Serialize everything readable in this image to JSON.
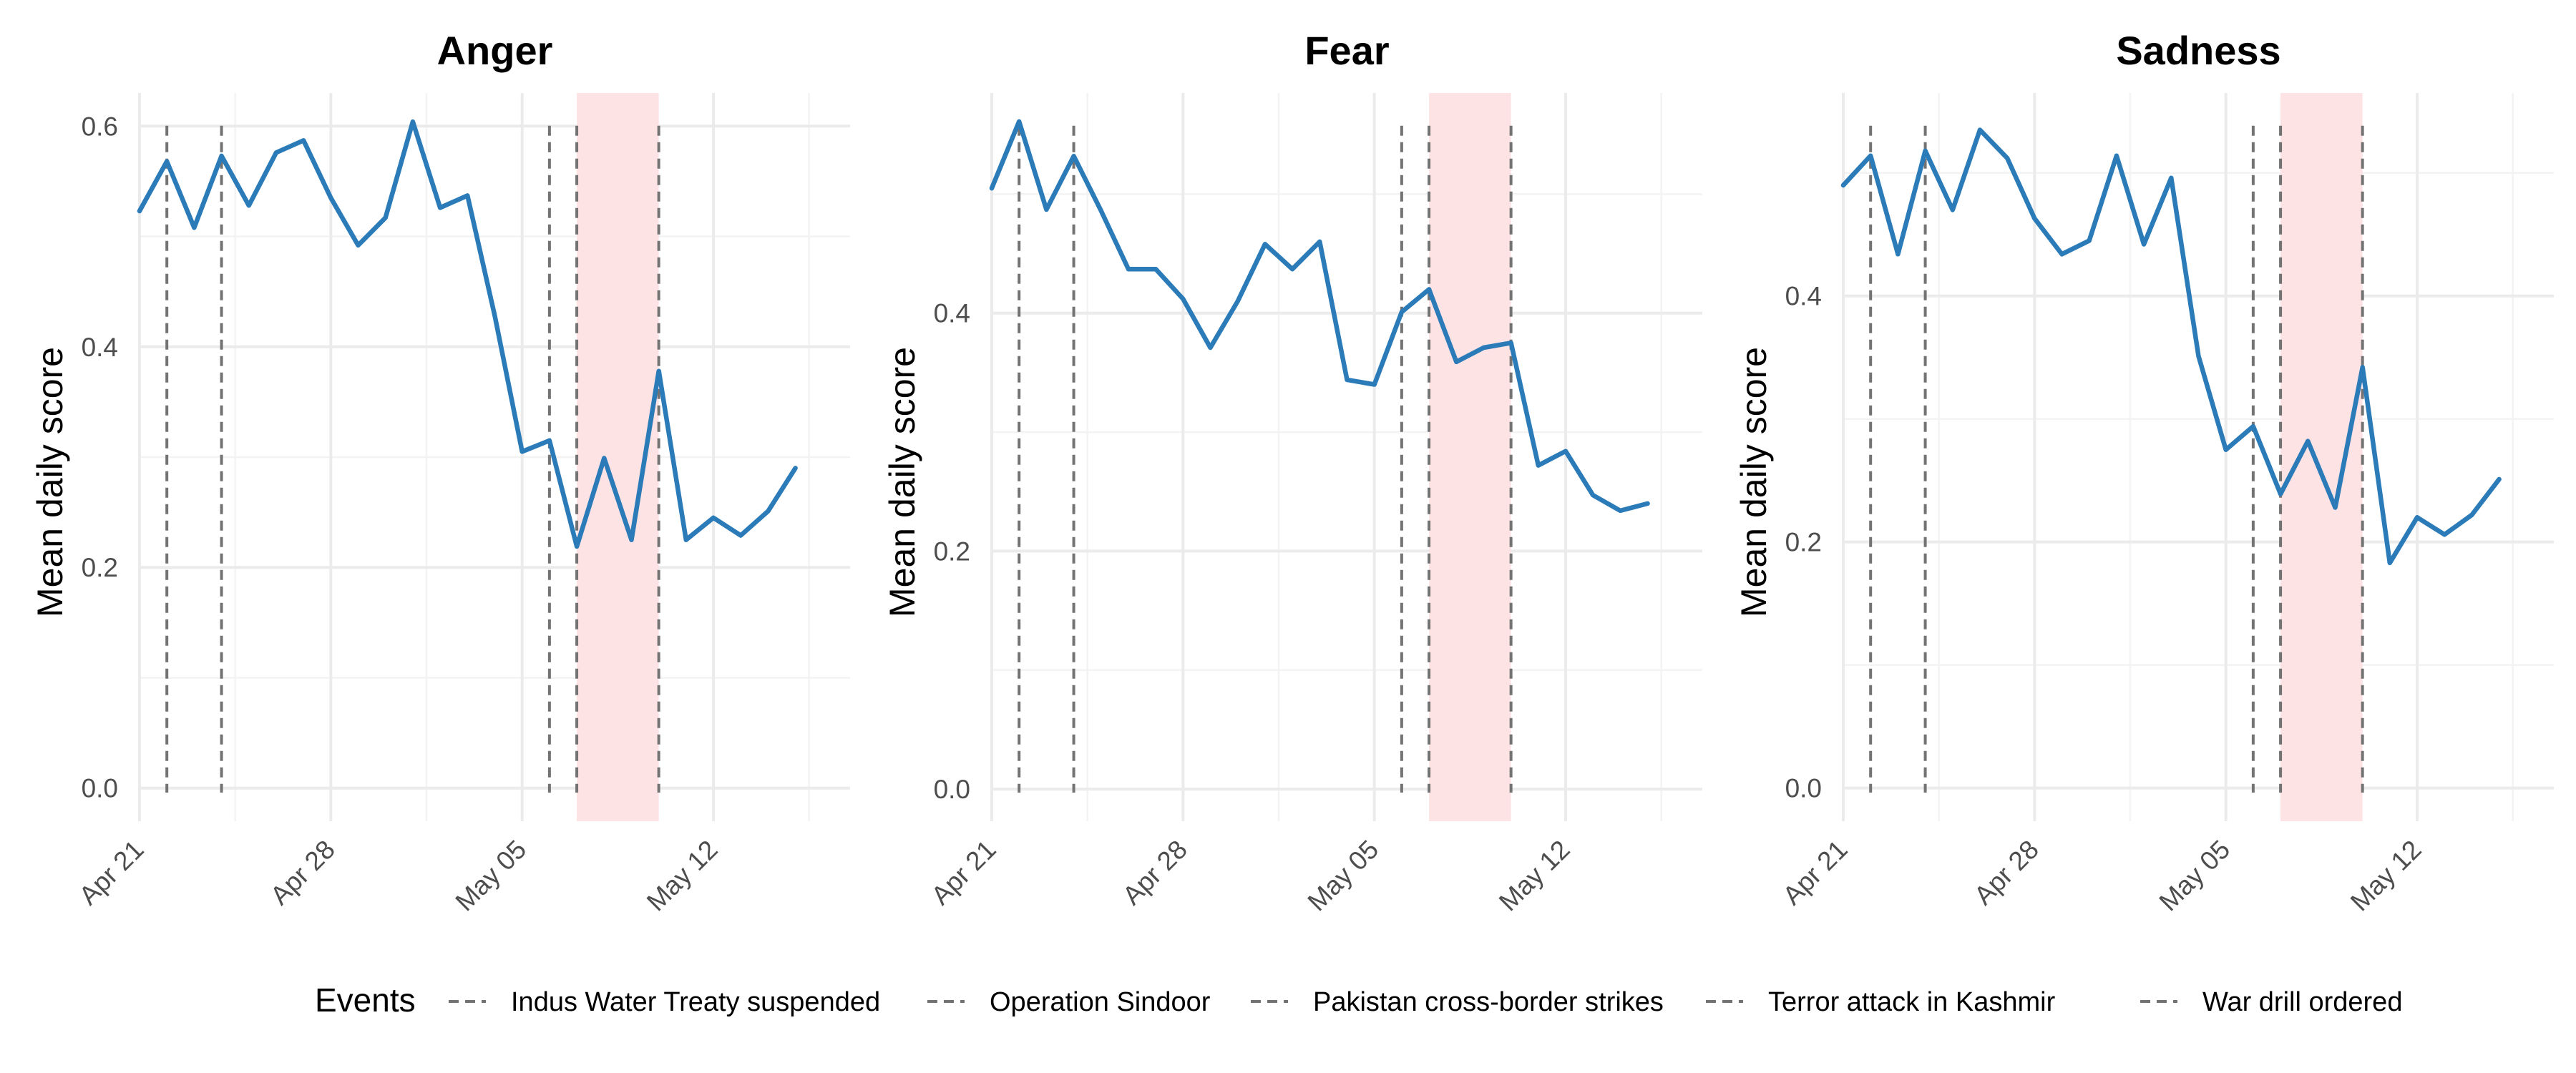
{
  "chart_data": [
    {
      "type": "line",
      "title": "Anger",
      "ylabel": "Mean daily score",
      "xlabel": "",
      "ylim": [
        -0.03,
        0.63
      ],
      "yticks": [
        {
          "value": 0.0,
          "label": "0.0"
        },
        {
          "value": 0.2,
          "label": "0.2"
        },
        {
          "value": 0.4,
          "label": "0.4"
        },
        {
          "value": 0.6,
          "label": "0.6"
        }
      ],
      "xticks": [
        {
          "date": "2025-04-21",
          "label": "Apr 21"
        },
        {
          "date": "2025-04-28",
          "label": "Apr 28"
        },
        {
          "date": "2025-05-05",
          "label": "May 05"
        },
        {
          "date": "2025-05-12",
          "label": "May 12"
        }
      ],
      "xlim": [
        "2025-04-21",
        "2025-05-17"
      ],
      "series": [
        {
          "color": "#2b7bb9",
          "x": [
            "2025-04-21",
            "2025-04-22",
            "2025-04-23",
            "2025-04-24",
            "2025-04-25",
            "2025-04-26",
            "2025-04-27",
            "2025-04-28",
            "2025-04-29",
            "2025-04-30",
            "2025-05-01",
            "2025-05-02",
            "2025-05-03",
            "2025-05-04",
            "2025-05-05",
            "2025-05-06",
            "2025-05-07",
            "2025-05-08",
            "2025-05-09",
            "2025-05-10",
            "2025-05-11",
            "2025-05-12",
            "2025-05-13",
            "2025-05-14",
            "2025-05-15",
            "2025-05-16"
          ],
          "y": [
            0.523,
            0.568,
            0.508,
            0.573,
            0.528,
            0.576,
            0.587,
            0.535,
            0.492,
            0.517,
            0.604,
            0.526,
            0.537,
            0.428,
            0.305,
            0.315,
            0.219,
            0.299,
            0.225,
            0.378,
            0.225,
            0.245,
            0.229,
            0.251,
            0.29,
            null
          ]
        }
      ],
      "event_lines": [
        "2025-04-22",
        "2025-04-24",
        "2025-05-06",
        "2025-05-07",
        "2025-05-10"
      ],
      "shaded_range": [
        "2025-05-07",
        "2025-05-10"
      ]
    },
    {
      "type": "line",
      "title": "Fear",
      "ylabel": "Mean daily score",
      "xlabel": "",
      "ylim": [
        -0.027,
        0.585
      ],
      "yticks": [
        {
          "value": 0.0,
          "label": "0.0"
        },
        {
          "value": 0.2,
          "label": "0.2"
        },
        {
          "value": 0.4,
          "label": "0.4"
        }
      ],
      "xticks": [
        {
          "date": "2025-04-21",
          "label": "Apr 21"
        },
        {
          "date": "2025-04-28",
          "label": "Apr 28"
        },
        {
          "date": "2025-05-05",
          "label": "May 05"
        },
        {
          "date": "2025-05-12",
          "label": "May 12"
        }
      ],
      "xlim": [
        "2025-04-21",
        "2025-05-17"
      ],
      "series": [
        {
          "color": "#2b7bb9",
          "x": [
            "2025-04-21",
            "2025-04-22",
            "2025-04-23",
            "2025-04-24",
            "2025-04-25",
            "2025-04-26",
            "2025-04-27",
            "2025-04-28",
            "2025-04-29",
            "2025-04-30",
            "2025-05-01",
            "2025-05-02",
            "2025-05-03",
            "2025-05-04",
            "2025-05-05",
            "2025-05-06",
            "2025-05-07",
            "2025-05-08",
            "2025-05-09",
            "2025-05-10",
            "2025-05-11",
            "2025-05-12",
            "2025-05-13",
            "2025-05-14",
            "2025-05-15",
            "2025-05-16"
          ],
          "y": [
            0.505,
            0.561,
            0.487,
            0.532,
            0.486,
            0.437,
            0.437,
            0.412,
            0.371,
            0.41,
            0.458,
            0.437,
            0.46,
            0.344,
            0.34,
            0.401,
            0.42,
            0.359,
            0.371,
            0.375,
            0.272,
            0.284,
            0.247,
            0.234,
            0.24,
            null
          ]
        }
      ],
      "event_lines": [
        "2025-04-22",
        "2025-04-24",
        "2025-05-06",
        "2025-05-07",
        "2025-05-10"
      ],
      "shaded_range": [
        "2025-05-07",
        "2025-05-10"
      ]
    },
    {
      "type": "line",
      "title": "Sadness",
      "ylabel": "Mean daily score",
      "xlabel": "",
      "ylim": [
        -0.027,
        0.565
      ],
      "yticks": [
        {
          "value": 0.0,
          "label": "0.0"
        },
        {
          "value": 0.2,
          "label": "0.2"
        },
        {
          "value": 0.4,
          "label": "0.4"
        }
      ],
      "xticks": [
        {
          "date": "2025-04-21",
          "label": "Apr 21"
        },
        {
          "date": "2025-04-28",
          "label": "Apr 28"
        },
        {
          "date": "2025-05-05",
          "label": "May 05"
        },
        {
          "date": "2025-05-12",
          "label": "May 12"
        }
      ],
      "xlim": [
        "2025-04-21",
        "2025-05-17"
      ],
      "series": [
        {
          "color": "#2b7bb9",
          "x": [
            "2025-04-21",
            "2025-04-22",
            "2025-04-23",
            "2025-04-24",
            "2025-04-25",
            "2025-04-26",
            "2025-04-27",
            "2025-04-28",
            "2025-04-29",
            "2025-04-30",
            "2025-05-01",
            "2025-05-02",
            "2025-05-03",
            "2025-05-04",
            "2025-05-05",
            "2025-05-06",
            "2025-05-07",
            "2025-05-08",
            "2025-05-09",
            "2025-05-10",
            "2025-05-11",
            "2025-05-12",
            "2025-05-13",
            "2025-05-14",
            "2025-05-15",
            "2025-05-16"
          ],
          "y": [
            0.49,
            0.514,
            0.434,
            0.518,
            0.47,
            0.535,
            0.512,
            0.463,
            0.434,
            0.445,
            0.514,
            0.442,
            0.496,
            0.351,
            0.275,
            0.294,
            0.239,
            0.282,
            0.228,
            0.342,
            0.183,
            0.22,
            0.206,
            0.222,
            0.251,
            null
          ]
        }
      ],
      "event_lines": [
        "2025-04-22",
        "2025-04-24",
        "2025-05-06",
        "2025-05-07",
        "2025-05-10"
      ],
      "shaded_range": [
        "2025-05-07",
        "2025-05-10"
      ]
    }
  ],
  "style": {
    "line_color": "#2b7bb9",
    "shade_color": "#fde3e4",
    "event_line_color": "#737373",
    "grid_major_color": "#ebebeb",
    "grid_minor_color": "#f3f3f3"
  },
  "legend": {
    "title": "Events",
    "placement": "bottom",
    "items": [
      "Indus Water Treaty suspended",
      "Operation Sindoor",
      "Pakistan cross-border strikes",
      "Terror attack in Kashmir",
      "War drill ordered"
    ]
  }
}
